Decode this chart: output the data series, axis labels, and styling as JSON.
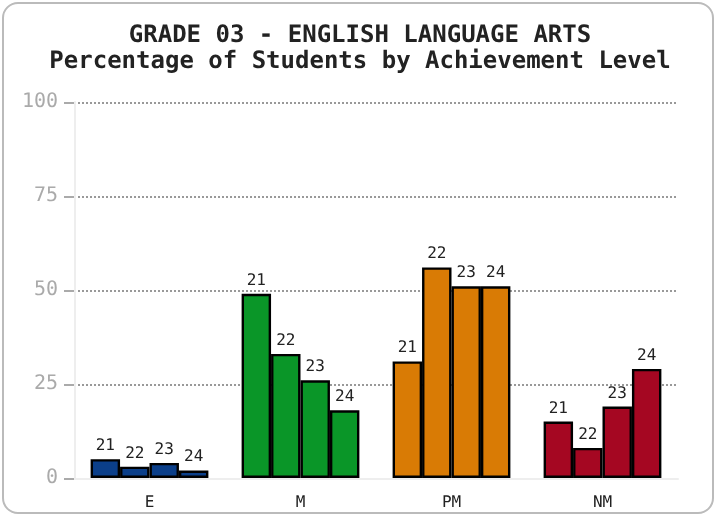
{
  "chart_data": {
    "type": "bar",
    "title": "GRADE 03 - ENGLISH LANGUAGE ARTS",
    "subtitle": "Percentage of Students by Achievement Level",
    "categories": [
      "E",
      "M",
      "PM",
      "NM"
    ],
    "series": [
      {
        "name": "21",
        "colors": [
          "#0b3f8a",
          "#0a9628",
          "#d97b05",
          "#a50722"
        ],
        "values": [
          5,
          49,
          31,
          15
        ]
      },
      {
        "name": "22",
        "colors": [
          "#0b3f8a",
          "#0a9628",
          "#d97b05",
          "#a50722"
        ],
        "values": [
          3,
          33,
          56,
          8
        ]
      },
      {
        "name": "23",
        "colors": [
          "#0b3f8a",
          "#0a9628",
          "#d97b05",
          "#a50722"
        ],
        "values": [
          4,
          26,
          51,
          19
        ]
      },
      {
        "name": "24",
        "colors": [
          "#0b3f8a",
          "#0a9628",
          "#d97b05",
          "#a50722"
        ],
        "values": [
          2,
          18,
          51,
          29
        ]
      }
    ],
    "ylim": [
      0,
      100
    ],
    "yticks": [
      0,
      25,
      50,
      75,
      100
    ],
    "grid": "y",
    "legend": false
  }
}
